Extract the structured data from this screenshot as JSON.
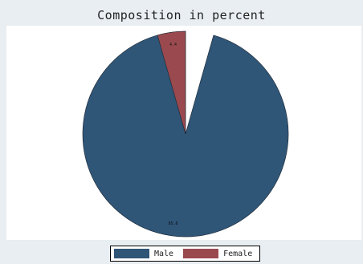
{
  "chart_data": {
    "type": "pie",
    "title": "Composition in percent",
    "categories": [
      "Male",
      "Female"
    ],
    "values": [
      95.6,
      4.4
    ],
    "data_labels": [
      "95.6",
      "4.4"
    ],
    "colors": [
      "#2f5577",
      "#9a4a4f"
    ],
    "legend_position": "bottom",
    "start_angle": "12 o'clock",
    "direction": "counterclockwise"
  }
}
